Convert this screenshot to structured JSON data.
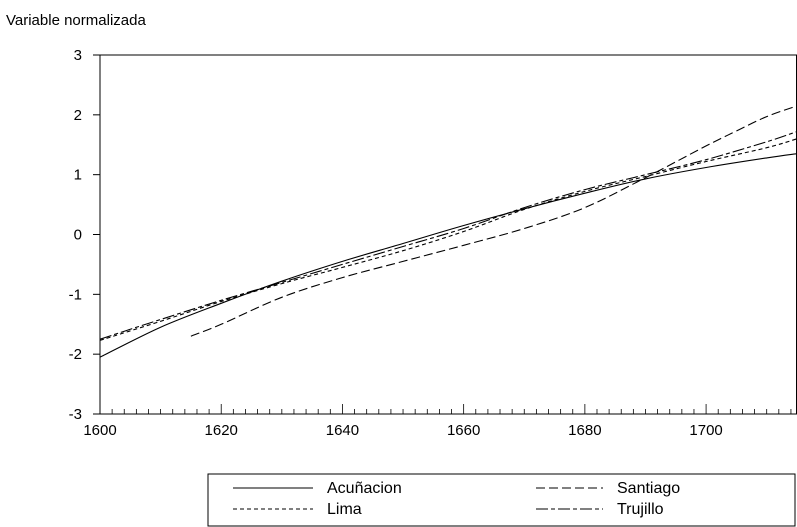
{
  "chart_data": {
    "type": "line",
    "title": "",
    "ylabel": "Variable normalizada",
    "xlabel": "",
    "xlim": [
      1600,
      1715
    ],
    "ylim": [
      -3,
      3
    ],
    "xticks": [
      1600,
      1620,
      1640,
      1660,
      1680,
      1700
    ],
    "xtick_labels": [
      "1600",
      "1620",
      "1640",
      "1660",
      "1680",
      "1700"
    ],
    "yticks": [
      3,
      2,
      1,
      0,
      -1,
      -2,
      -3
    ],
    "ytick_labels": [
      "3",
      "2",
      "1",
      "0",
      "-1",
      "-2",
      "-3"
    ],
    "grid": false,
    "legend_position": "bottom-right",
    "series": [
      {
        "name": "Acuñacion",
        "dash": "solid",
        "x": [
          1600,
          1610,
          1620,
          1630,
          1640,
          1650,
          1660,
          1670,
          1680,
          1690,
          1700,
          1710,
          1715
        ],
        "y": [
          -2.05,
          -1.55,
          -1.15,
          -0.78,
          -0.45,
          -0.15,
          0.15,
          0.43,
          0.69,
          0.93,
          1.12,
          1.28,
          1.35
        ]
      },
      {
        "name": "Santiago",
        "dash": "long",
        "x": [
          1615,
          1620,
          1630,
          1640,
          1650,
          1660,
          1670,
          1680,
          1690,
          1700,
          1705,
          1710,
          1715
        ],
        "y": [
          -1.7,
          -1.5,
          -1.05,
          -0.72,
          -0.45,
          -0.18,
          0.1,
          0.45,
          0.95,
          1.48,
          1.73,
          1.97,
          2.15
        ]
      },
      {
        "name": "Lima",
        "dash": "short",
        "x": [
          1600,
          1610,
          1620,
          1630,
          1640,
          1650,
          1660,
          1670,
          1680,
          1690,
          1700,
          1710,
          1715
        ],
        "y": [
          -1.77,
          -1.45,
          -1.12,
          -0.82,
          -0.55,
          -0.27,
          0.05,
          0.42,
          0.72,
          0.97,
          1.22,
          1.45,
          1.6
        ]
      },
      {
        "name": "Trujillo",
        "dash": "dashdot",
        "x": [
          1600,
          1610,
          1620,
          1630,
          1640,
          1650,
          1660,
          1670,
          1680,
          1690,
          1700,
          1710,
          1715
        ],
        "y": [
          -1.75,
          -1.42,
          -1.1,
          -0.8,
          -0.5,
          -0.2,
          0.1,
          0.45,
          0.75,
          1.0,
          1.25,
          1.55,
          1.72
        ]
      }
    ]
  }
}
